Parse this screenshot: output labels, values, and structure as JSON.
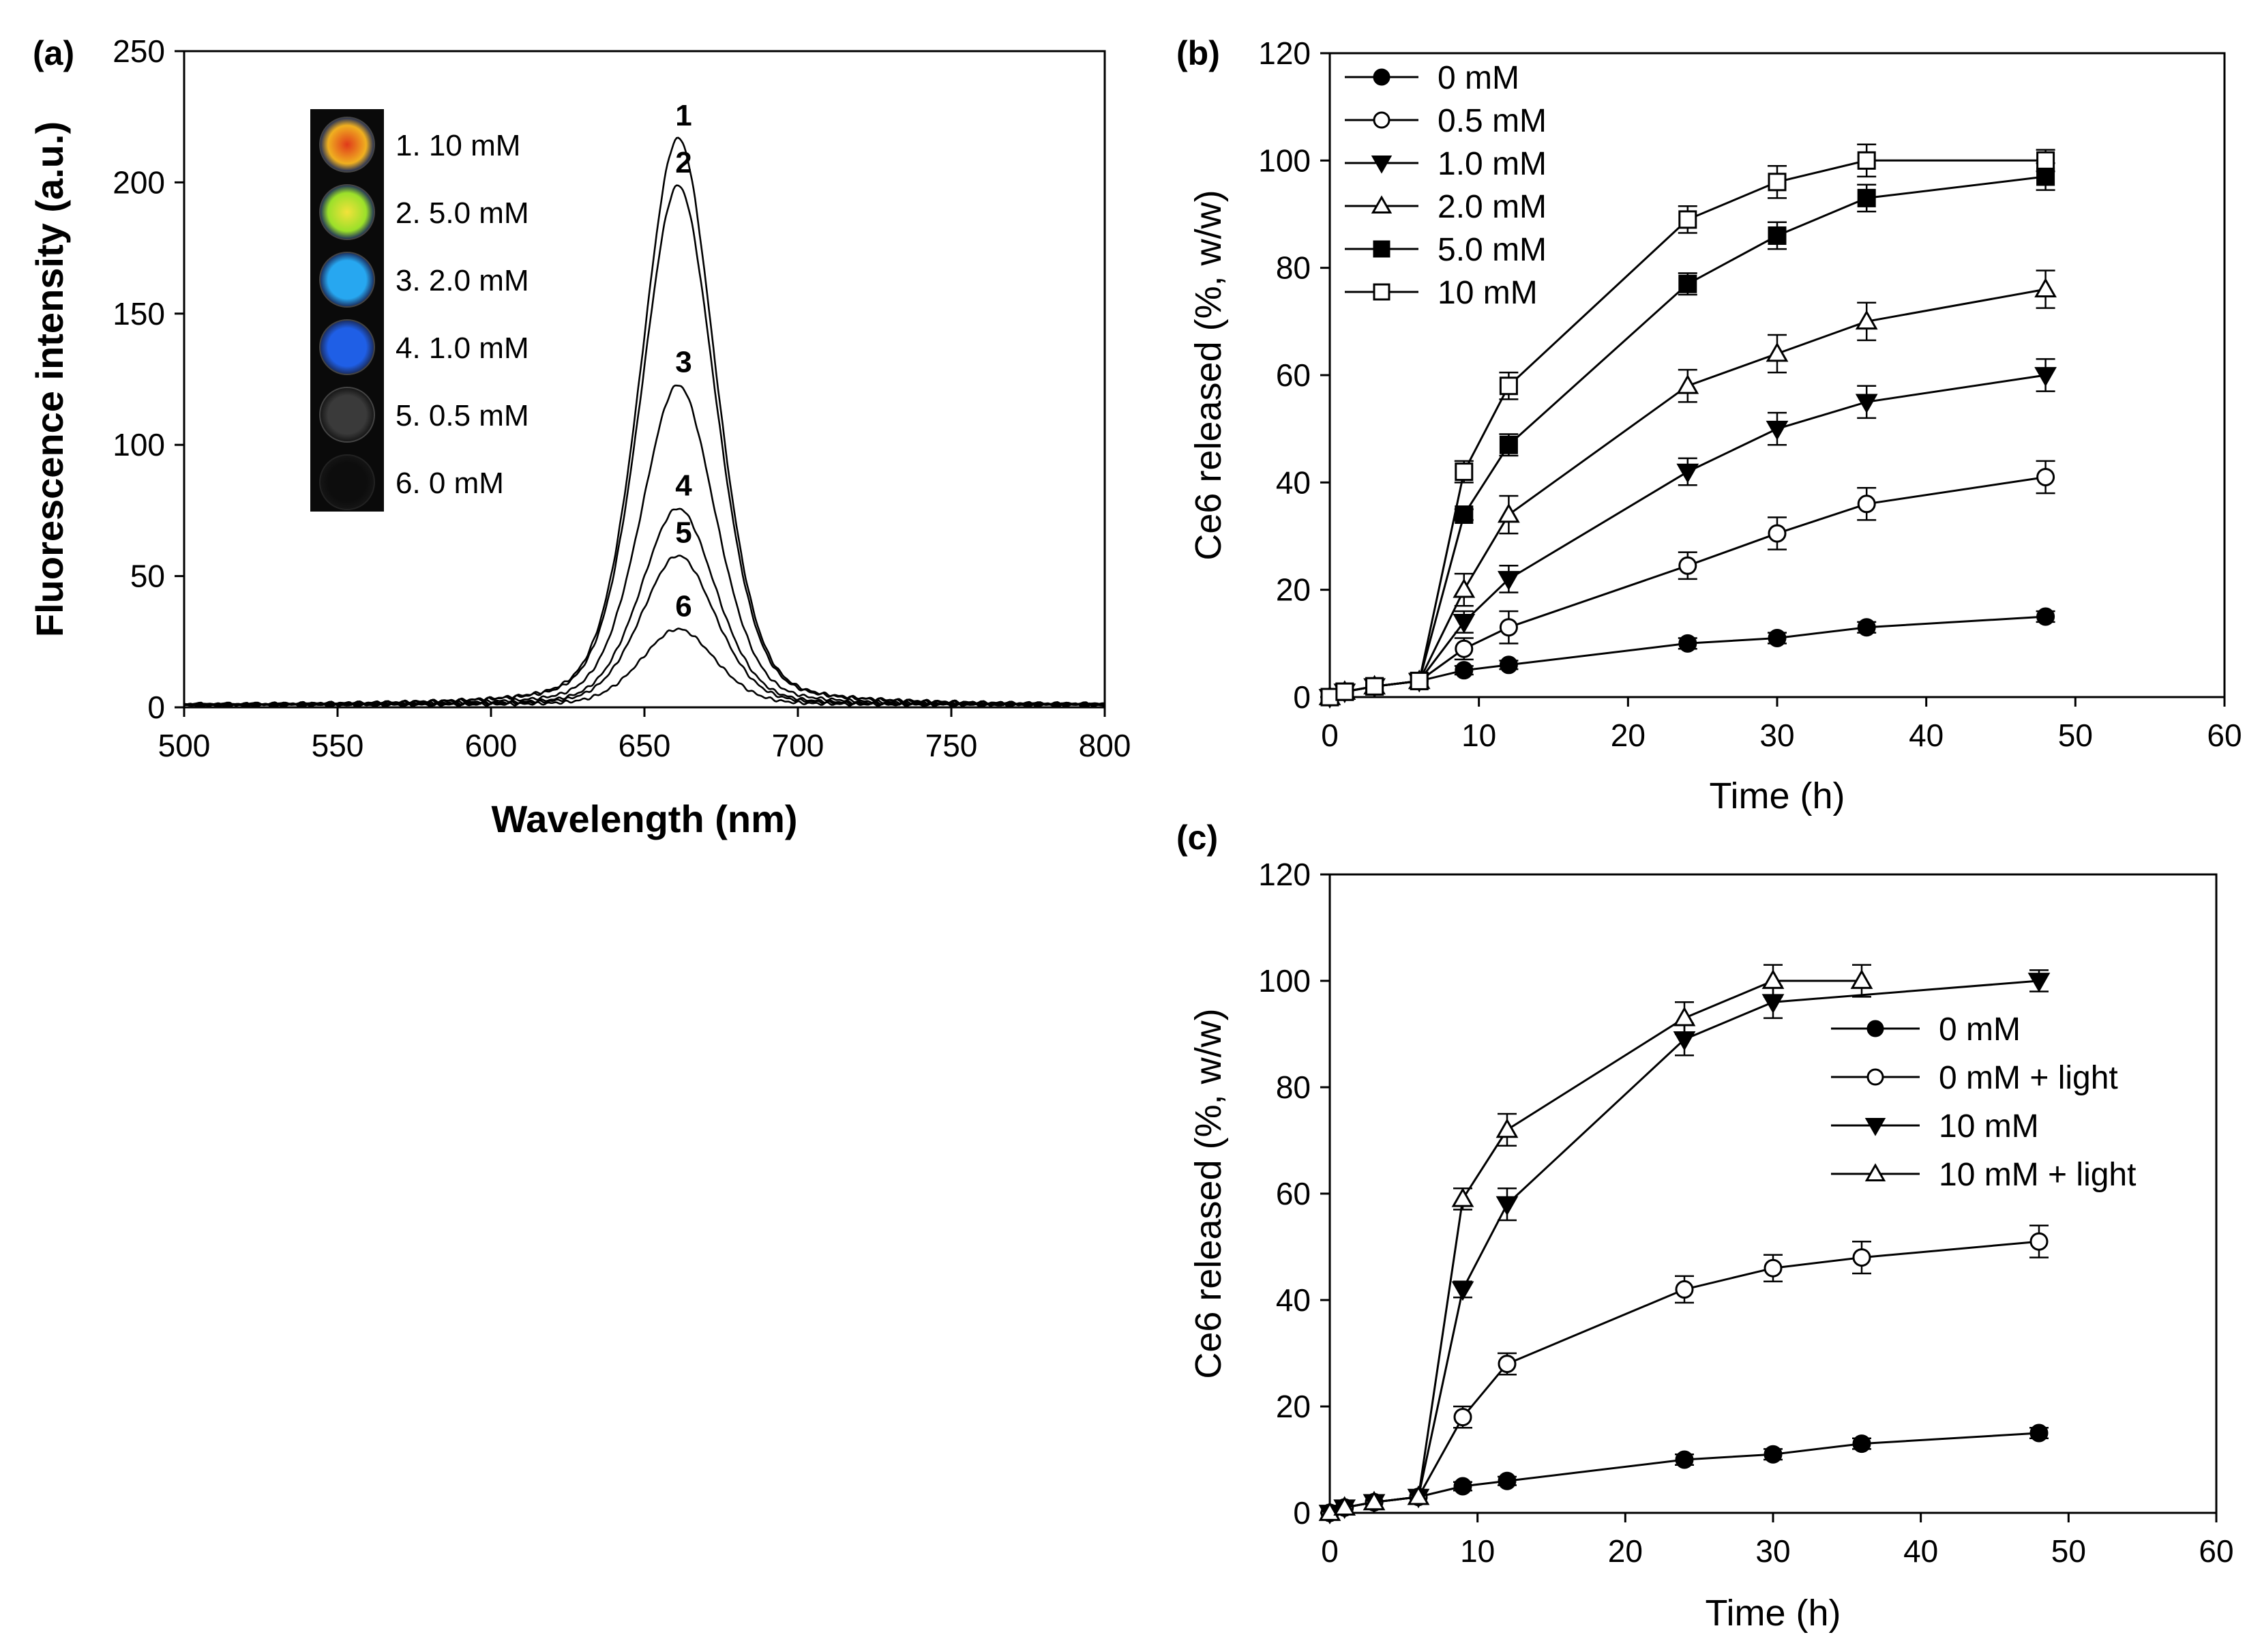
{
  "chart_data": [
    {
      "panel_label": "(a)",
      "type": "line",
      "title": "",
      "xlabel": "Wavelength (nm)",
      "ylabel": "Fluorescence intensity (a.u.)",
      "xlim": [
        500,
        800
      ],
      "ylim": [
        0,
        250
      ],
      "xticks": [
        "500",
        "550",
        "600",
        "650",
        "700",
        "750",
        "800"
      ],
      "yticks": [
        "0",
        "50",
        "100",
        "150",
        "200",
        "250"
      ],
      "grid": false,
      "peak_center_nm": 661,
      "series": [
        {
          "name": "1",
          "peak": 216
        },
        {
          "name": "2",
          "peak": 198
        },
        {
          "name": "3",
          "peak": 122
        },
        {
          "name": "4",
          "peak": 75
        },
        {
          "name": "5",
          "peak": 57
        },
        {
          "name": "6",
          "peak": 29
        }
      ],
      "inset": {
        "items": [
          {
            "label": "1.  10 mM",
            "color": "#f0b020"
          },
          {
            "label": "2.  5.0 mM",
            "color": "#9be02a"
          },
          {
            "label": "3.  2.0 mM",
            "color": "#27a7f0"
          },
          {
            "label": "4.  1.0 mM",
            "color": "#1f5fe6"
          },
          {
            "label": "5.  0.5 mM",
            "color": "#3a3a3a"
          },
          {
            "label": "6.  0 mM",
            "color": "#0d0d0d"
          }
        ]
      }
    },
    {
      "panel_label": "(b)",
      "type": "line",
      "title": "",
      "xlabel": "Time (h)",
      "ylabel": "Ce6 released (%, w/w)",
      "xlim": [
        0,
        60
      ],
      "ylim": [
        0,
        120
      ],
      "xticks": [
        "0",
        "10",
        "20",
        "30",
        "40",
        "50",
        "60"
      ],
      "yticks": [
        "0",
        "20",
        "40",
        "60",
        "80",
        "100",
        "120"
      ],
      "grid": false,
      "legend_position": "top-left",
      "x": [
        0,
        1,
        3,
        6,
        9,
        12,
        24,
        30,
        36,
        48
      ],
      "series": [
        {
          "name": "0 mM",
          "marker": "circle-filled",
          "values": [
            0,
            1,
            2,
            3,
            5,
            6,
            10,
            11,
            13,
            15
          ],
          "err": [
            0.5,
            0.5,
            0.5,
            0.5,
            0.8,
            0.8,
            1,
            1,
            1,
            1
          ]
        },
        {
          "name": "0.5 mM",
          "marker": "circle-open",
          "values": [
            0,
            1,
            2,
            3,
            9,
            13,
            24.5,
            30.5,
            36,
            41
          ],
          "err": [
            0.5,
            0.5,
            0.5,
            0.5,
            2,
            3,
            2.5,
            3,
            3,
            3
          ]
        },
        {
          "name": "1.0 mM",
          "marker": "triangle-down-filled",
          "values": [
            0,
            1,
            2,
            3,
            14,
            22,
            42,
            50,
            55,
            60
          ],
          "err": [
            0.5,
            0.5,
            0.5,
            0.5,
            2,
            2.5,
            2.5,
            3,
            3,
            3
          ]
        },
        {
          "name": "2.0 mM",
          "marker": "triangle-up-open",
          "values": [
            0,
            1,
            2,
            3,
            20,
            34,
            58,
            64,
            70,
            76
          ],
          "err": [
            0.5,
            0.5,
            0.5,
            0.5,
            3,
            3.5,
            3,
            3.5,
            3.5,
            3.5
          ]
        },
        {
          "name": "5.0 mM",
          "marker": "square-filled",
          "values": [
            0,
            1,
            2,
            3,
            34,
            47,
            77,
            86,
            93,
            97
          ],
          "err": [
            0.5,
            0.5,
            0.5,
            0.5,
            1,
            2,
            2,
            2.5,
            2.5,
            2.5
          ]
        },
        {
          "name": "10 mM",
          "marker": "square-open",
          "values": [
            0,
            1,
            2,
            3,
            42,
            58,
            89,
            96,
            100,
            100
          ],
          "err": [
            0.5,
            0.5,
            0.5,
            0.5,
            2,
            2.5,
            2.5,
            3,
            3,
            2
          ]
        }
      ]
    },
    {
      "panel_label": "(c)",
      "type": "line",
      "title": "",
      "xlabel": "Time (h)",
      "ylabel": "Ce6 released (%, w/w)",
      "xlim": [
        0,
        60
      ],
      "ylim": [
        0,
        120
      ],
      "xticks": [
        "0",
        "10",
        "20",
        "30",
        "40",
        "50",
        "60"
      ],
      "yticks": [
        "0",
        "20",
        "40",
        "60",
        "80",
        "100",
        "120"
      ],
      "grid": false,
      "legend_position": "middle-right",
      "x": [
        0,
        1,
        3,
        6,
        9,
        12,
        24,
        30,
        36,
        48
      ],
      "series": [
        {
          "name": "0 mM",
          "marker": "circle-filled",
          "values": [
            0,
            1,
            2,
            3,
            5,
            6,
            10,
            11,
            13,
            15
          ],
          "err": [
            0.5,
            0.5,
            0.5,
            0.5,
            0.8,
            0.8,
            1,
            1,
            1,
            1
          ]
        },
        {
          "name": "0 mM + light",
          "marker": "circle-open",
          "values": [
            0,
            1,
            2,
            3,
            18,
            28,
            42,
            46,
            48,
            51
          ],
          "err": [
            0.5,
            0.5,
            0.5,
            0.5,
            2,
            2,
            2.5,
            2.5,
            3,
            3
          ]
        },
        {
          "name": "10 mM",
          "marker": "triangle-down-filled",
          "values": [
            0,
            1,
            2,
            3,
            42,
            58,
            89,
            96,
            null,
            100
          ],
          "err": [
            0.5,
            0.5,
            0.5,
            0.5,
            1.5,
            3,
            3,
            3,
            null,
            2
          ]
        },
        {
          "name": "10 mM + light",
          "marker": "triangle-up-open",
          "values": [
            0,
            1,
            2,
            3,
            59,
            72,
            93,
            100,
            100,
            null
          ],
          "err": [
            0.5,
            0.5,
            0.5,
            0.5,
            2,
            3,
            3,
            3,
            3,
            null
          ]
        }
      ]
    }
  ]
}
